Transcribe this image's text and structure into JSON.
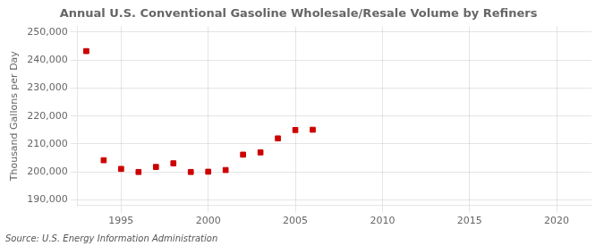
{
  "chart_data": {
    "type": "scatter",
    "title": "Annual U.S. Conventional Gasoline Wholesale/Resale Volume by Refiners",
    "ylabel": "Thousand Gallons per Day",
    "annotations": [
      "Source: U.S. Energy Information Administration"
    ],
    "x": [
      1993,
      1994,
      1995,
      1996,
      1997,
      1998,
      1999,
      2000,
      2001,
      2002,
      2003,
      2004,
      2005,
      2006
    ],
    "values": [
      243200,
      204200,
      201100,
      200000,
      201800,
      203100,
      200000,
      200100,
      200700,
      206200,
      207000,
      212000,
      215000,
      215100
    ],
    "color": "#cc0000",
    "marker": "square",
    "xlim": [
      1992.5,
      2022
    ],
    "xticks": [
      1995,
      2000,
      2005,
      2010,
      2015,
      2020
    ],
    "ylim": [
      188000,
      252000
    ],
    "yticks": [
      {
        "value": 190000,
        "label": "190,000"
      },
      {
        "value": 200000,
        "label": "200,000"
      },
      {
        "value": 210000,
        "label": "210,000"
      },
      {
        "value": 220000,
        "label": "220,000"
      },
      {
        "value": 230000,
        "label": "230,000"
      },
      {
        "value": 240000,
        "label": "240,000"
      },
      {
        "value": 250000,
        "label": "250,000"
      }
    ],
    "grid": true
  }
}
